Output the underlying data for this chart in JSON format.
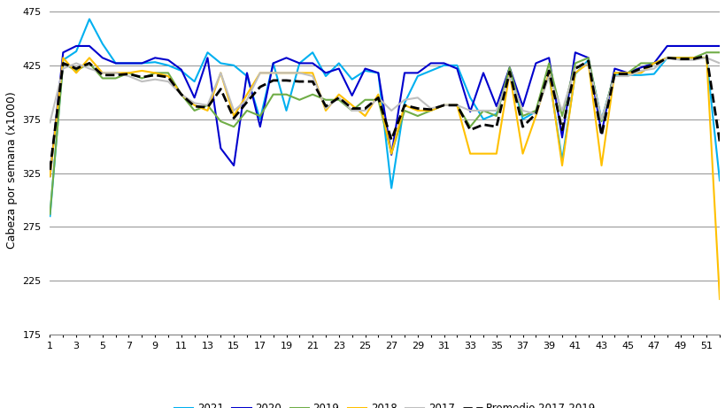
{
  "weeks": [
    1,
    2,
    3,
    4,
    5,
    6,
    7,
    8,
    9,
    10,
    11,
    12,
    13,
    14,
    15,
    16,
    17,
    18,
    19,
    20,
    21,
    22,
    23,
    24,
    25,
    26,
    27,
    28,
    29,
    30,
    31,
    32,
    33,
    34,
    35,
    36,
    37,
    38,
    39,
    40,
    41,
    42,
    43,
    44,
    45,
    46,
    47,
    48,
    49,
    50,
    51,
    52
  ],
  "y2021": [
    285,
    430,
    438,
    468,
    445,
    427,
    427,
    427,
    428,
    425,
    420,
    410,
    437,
    427,
    425,
    415,
    375,
    427,
    383,
    427,
    437,
    415,
    427,
    412,
    420,
    418,
    311,
    390,
    415,
    420,
    425,
    425,
    395,
    375,
    380,
    420,
    375,
    382,
    416,
    337,
    417,
    430,
    375,
    416,
    416,
    416,
    417,
    432,
    432,
    432,
    432,
    318
  ],
  "y2020": [
    322,
    437,
    443,
    443,
    432,
    427,
    427,
    427,
    432,
    430,
    421,
    395,
    432,
    348,
    332,
    418,
    368,
    427,
    432,
    427,
    427,
    418,
    422,
    397,
    422,
    418,
    342,
    418,
    418,
    427,
    427,
    422,
    382,
    418,
    387,
    423,
    387,
    427,
    432,
    358,
    437,
    432,
    362,
    422,
    418,
    423,
    427,
    443,
    443,
    443,
    443,
    443
  ],
  "y2019": [
    287,
    427,
    420,
    427,
    413,
    413,
    418,
    413,
    418,
    418,
    398,
    383,
    388,
    373,
    368,
    383,
    378,
    398,
    398,
    393,
    398,
    393,
    393,
    383,
    393,
    393,
    343,
    383,
    378,
    383,
    388,
    388,
    368,
    383,
    378,
    423,
    378,
    383,
    427,
    378,
    427,
    432,
    373,
    418,
    418,
    427,
    427,
    432,
    432,
    432,
    437,
    437
  ],
  "y2018": [
    322,
    432,
    418,
    432,
    418,
    418,
    418,
    420,
    418,
    415,
    398,
    388,
    383,
    418,
    378,
    398,
    418,
    418,
    418,
    418,
    418,
    383,
    398,
    388,
    378,
    398,
    343,
    388,
    383,
    383,
    388,
    388,
    343,
    343,
    343,
    418,
    343,
    378,
    418,
    332,
    418,
    427,
    332,
    418,
    418,
    418,
    427,
    432,
    432,
    432,
    432,
    208
  ],
  "y2017": [
    372,
    422,
    427,
    422,
    418,
    418,
    415,
    410,
    412,
    410,
    398,
    390,
    388,
    418,
    383,
    393,
    418,
    418,
    418,
    418,
    415,
    385,
    395,
    383,
    383,
    395,
    383,
    393,
    395,
    385,
    388,
    388,
    383,
    383,
    383,
    415,
    383,
    380,
    415,
    383,
    422,
    427,
    375,
    415,
    415,
    420,
    422,
    432,
    430,
    430,
    432,
    427
  ],
  "promedio": [
    328,
    427,
    422,
    427,
    416,
    416,
    417,
    414,
    416,
    414,
    398,
    387,
    386,
    403,
    376,
    391,
    405,
    411,
    411,
    410,
    410,
    387,
    395,
    385,
    385,
    395,
    356,
    388,
    385,
    384,
    388,
    388,
    365,
    370,
    368,
    419,
    368,
    380,
    420,
    365,
    422,
    429,
    360,
    417,
    417,
    422,
    425,
    432,
    431,
    431,
    434,
    354
  ],
  "ylabel": "Cabeza por semana (x1000)",
  "ylim": [
    175,
    480
  ],
  "yticks": [
    175,
    225,
    275,
    325,
    375,
    425,
    475
  ],
  "line_colors": {
    "2021": "#00B0F0",
    "2020": "#0000CD",
    "2019": "#70AD47",
    "2018": "#FFC000",
    "2017": "#BFBFBF",
    "promedio": "#000000"
  },
  "background_color": "#ffffff",
  "grid_color": "#808080",
  "figsize": [
    8.2,
    4.61
  ],
  "dpi": 100
}
